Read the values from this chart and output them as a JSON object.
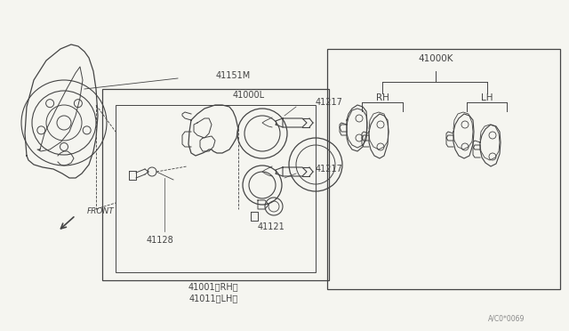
{
  "bg_color": "#f5f5f0",
  "line_color": "#444444",
  "text_color": "#444444",
  "watermark": "A/C0*0069",
  "fig_width": 6.4,
  "fig_height": 3.72,
  "dpi": 100,
  "xlim": [
    0,
    640
  ],
  "ylim": [
    0,
    372
  ]
}
